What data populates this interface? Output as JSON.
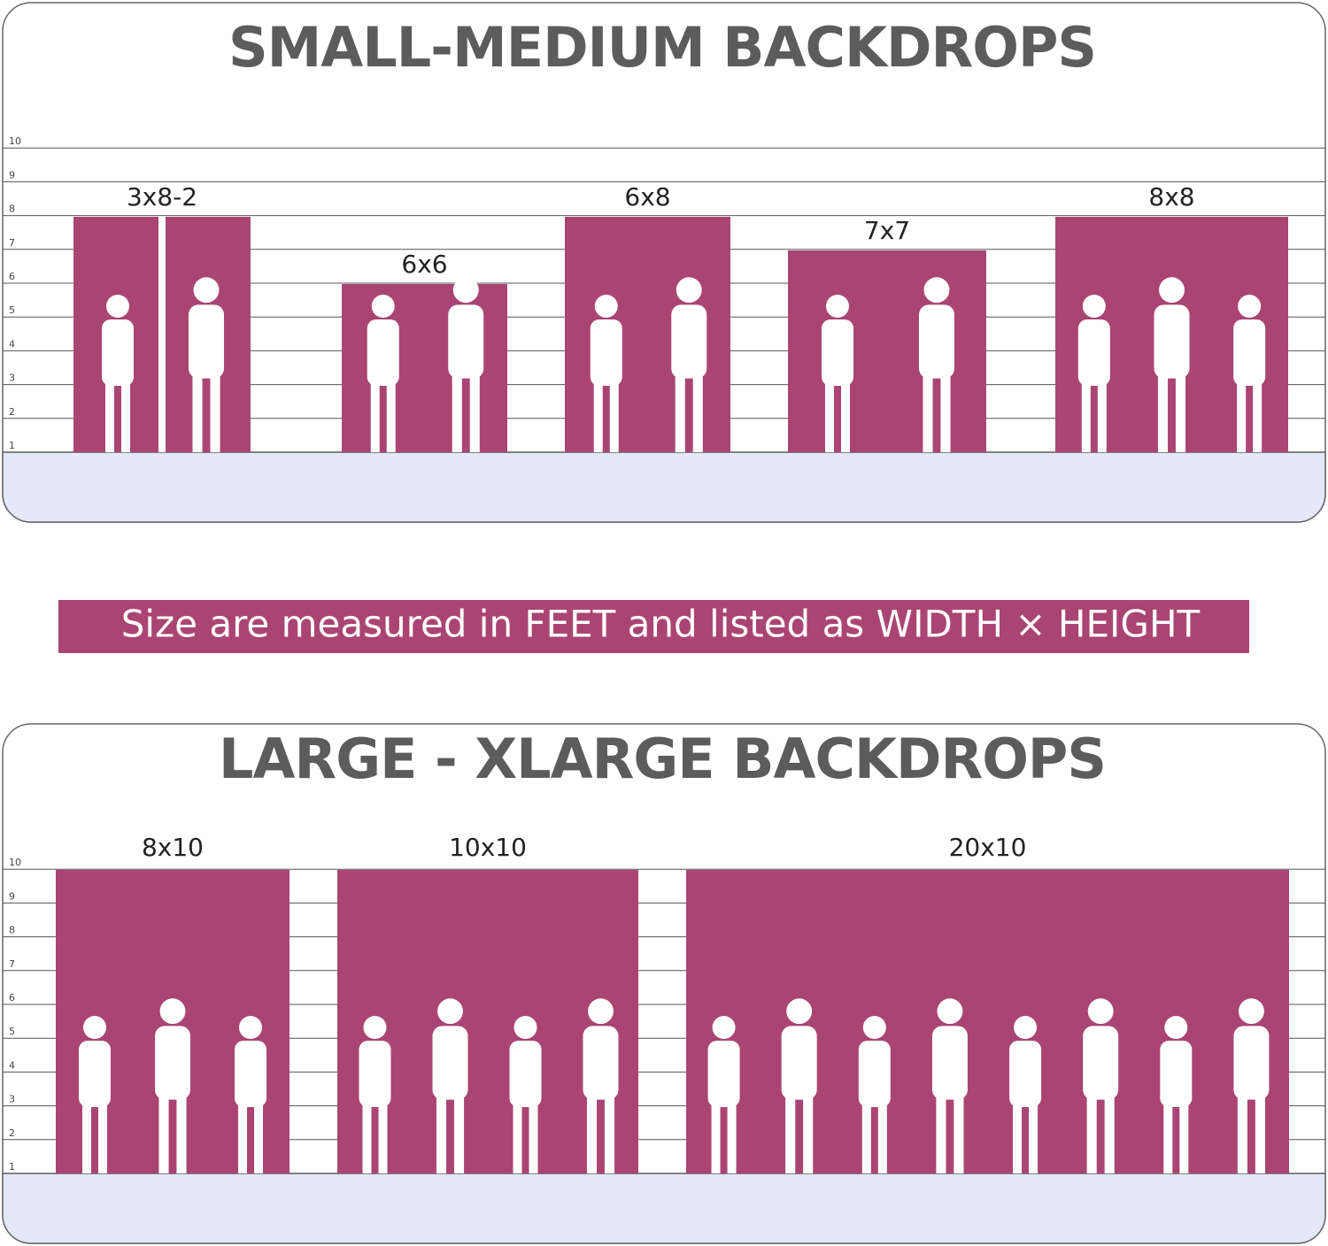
{
  "panels": [
    {
      "title": "SMALL-MEDIUM BACKDROPS",
      "ruler_labels": [
        1,
        2,
        3,
        4,
        5,
        6,
        7,
        8,
        9,
        10
      ],
      "backdrops": [
        "3x8-2",
        "6x6",
        "6x8",
        "7x7",
        "8x8"
      ]
    },
    {
      "title": "LARGE - XLARGE BACKDROPS",
      "ruler_labels": [
        1,
        2,
        3,
        4,
        5,
        6,
        7,
        8,
        9,
        10
      ],
      "backdrops": [
        "8x10",
        "10x10",
        "20x10"
      ]
    }
  ],
  "note": "Size are measured in FEET and listed as WIDTH × HEIGHT"
}
